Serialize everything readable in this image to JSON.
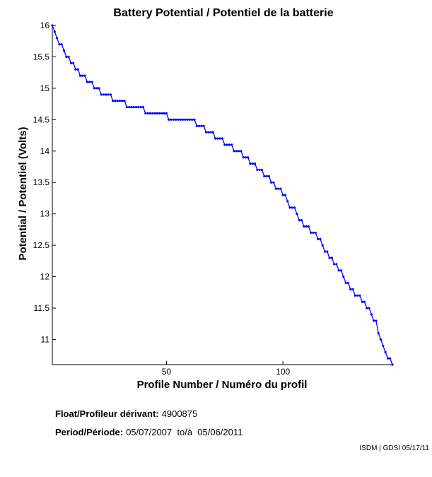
{
  "chart_data": {
    "type": "line",
    "title": "Battery Potential / Potentiel de la batterie",
    "xlabel": "Profile Number / Numéro du profil",
    "ylabel": "Potential / Potentiel (Volts)",
    "xlim": [
      1,
      147
    ],
    "ylim": [
      10.6,
      16.0
    ],
    "x_ticks": [
      50,
      100
    ],
    "y_ticks": [
      11,
      11.5,
      12,
      12.5,
      13,
      13.5,
      14,
      14.5,
      15,
      15.5,
      16
    ],
    "grid": false,
    "legend": "none",
    "series": [
      {
        "color": "#0000ff",
        "marker": "dot",
        "x": [
          1,
          2,
          3,
          4,
          5,
          6,
          7,
          8,
          9,
          10,
          11,
          12,
          13,
          14,
          15,
          16,
          17,
          18,
          19,
          20,
          21,
          22,
          23,
          24,
          25,
          26,
          27,
          28,
          29,
          30,
          31,
          32,
          33,
          34,
          35,
          36,
          37,
          38,
          39,
          40,
          41,
          42,
          43,
          44,
          45,
          46,
          47,
          48,
          49,
          50,
          51,
          52,
          53,
          54,
          55,
          56,
          57,
          58,
          59,
          60,
          61,
          62,
          63,
          64,
          65,
          66,
          67,
          68,
          69,
          70,
          71,
          72,
          73,
          74,
          75,
          76,
          77,
          78,
          79,
          80,
          81,
          82,
          83,
          84,
          85,
          86,
          87,
          88,
          89,
          90,
          91,
          92,
          93,
          94,
          95,
          96,
          97,
          98,
          99,
          100,
          101,
          102,
          103,
          104,
          105,
          106,
          107,
          108,
          109,
          110,
          111,
          112,
          113,
          114,
          115,
          116,
          117,
          118,
          119,
          120,
          121,
          122,
          123,
          124,
          125,
          126,
          127,
          128,
          129,
          130,
          131,
          132,
          133,
          134,
          135,
          136,
          137,
          138,
          139,
          140,
          141,
          142,
          143,
          144,
          145,
          146,
          147
        ],
        "y": [
          16.0,
          15.9,
          15.8,
          15.7,
          15.7,
          15.6,
          15.5,
          15.5,
          15.4,
          15.4,
          15.3,
          15.3,
          15.2,
          15.2,
          15.2,
          15.1,
          15.1,
          15.1,
          15.0,
          15.0,
          15.0,
          14.9,
          14.9,
          14.9,
          14.9,
          14.9,
          14.8,
          14.8,
          14.8,
          14.8,
          14.8,
          14.8,
          14.7,
          14.7,
          14.7,
          14.7,
          14.7,
          14.7,
          14.7,
          14.7,
          14.6,
          14.6,
          14.6,
          14.6,
          14.6,
          14.6,
          14.6,
          14.6,
          14.6,
          14.6,
          14.5,
          14.5,
          14.5,
          14.5,
          14.5,
          14.5,
          14.5,
          14.5,
          14.5,
          14.5,
          14.5,
          14.5,
          14.4,
          14.4,
          14.4,
          14.4,
          14.3,
          14.3,
          14.3,
          14.3,
          14.2,
          14.2,
          14.2,
          14.2,
          14.1,
          14.1,
          14.1,
          14.1,
          14.0,
          14.0,
          14.0,
          14.0,
          13.9,
          13.9,
          13.9,
          13.8,
          13.8,
          13.8,
          13.7,
          13.7,
          13.7,
          13.6,
          13.6,
          13.6,
          13.5,
          13.5,
          13.4,
          13.4,
          13.4,
          13.3,
          13.3,
          13.2,
          13.1,
          13.1,
          13.1,
          13.0,
          12.9,
          12.9,
          12.8,
          12.8,
          12.8,
          12.7,
          12.7,
          12.7,
          12.6,
          12.6,
          12.5,
          12.4,
          12.4,
          12.3,
          12.3,
          12.2,
          12.2,
          12.1,
          12.1,
          12.0,
          11.9,
          11.9,
          11.8,
          11.8,
          11.7,
          11.7,
          11.7,
          11.6,
          11.6,
          11.5,
          11.5,
          11.4,
          11.3,
          11.3,
          11.1,
          11.0,
          10.9,
          10.8,
          10.7,
          10.7,
          10.6
        ]
      }
    ]
  },
  "info": {
    "float_label": "Float/Profileur dérivant:",
    "float_value": "4900875",
    "period_label": "Period/Période:",
    "period_value": "05/07/2007  to/à  05/06/2011"
  },
  "footer": "ISDM | GDSI 05/17/11"
}
